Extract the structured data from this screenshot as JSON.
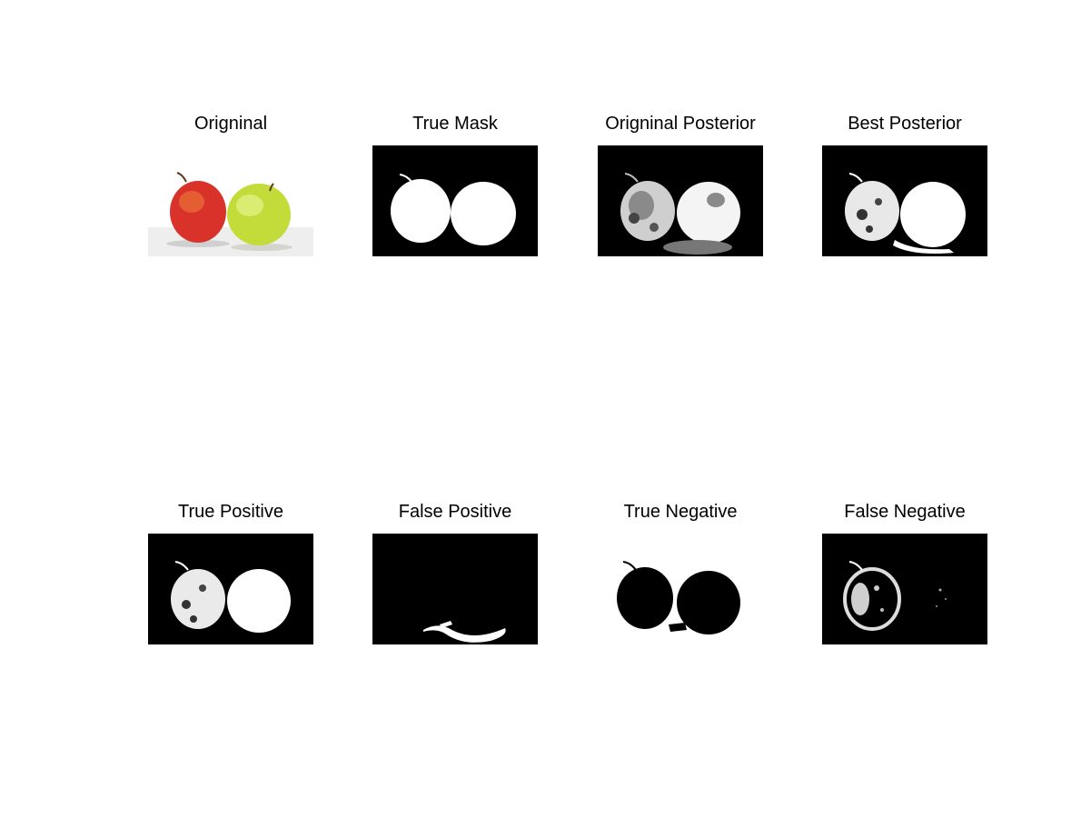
{
  "figure": {
    "panels": [
      {
        "id": "p1",
        "title": "Origninal"
      },
      {
        "id": "p2",
        "title": "True Mask"
      },
      {
        "id": "p3",
        "title": "Origninal Posterior"
      },
      {
        "id": "p4",
        "title": "Best Posterior"
      },
      {
        "id": "p5",
        "title": "True Positive"
      },
      {
        "id": "p6",
        "title": "False Positive"
      },
      {
        "id": "p7",
        "title": "True Negative"
      },
      {
        "id": "p8",
        "title": "False Negative"
      }
    ]
  },
  "colors": {
    "background": "#ffffff",
    "mask_on": "#ffffff",
    "mask_off": "#000000",
    "apple_red": "#d8322a",
    "apple_green": "#c4dc3a"
  }
}
